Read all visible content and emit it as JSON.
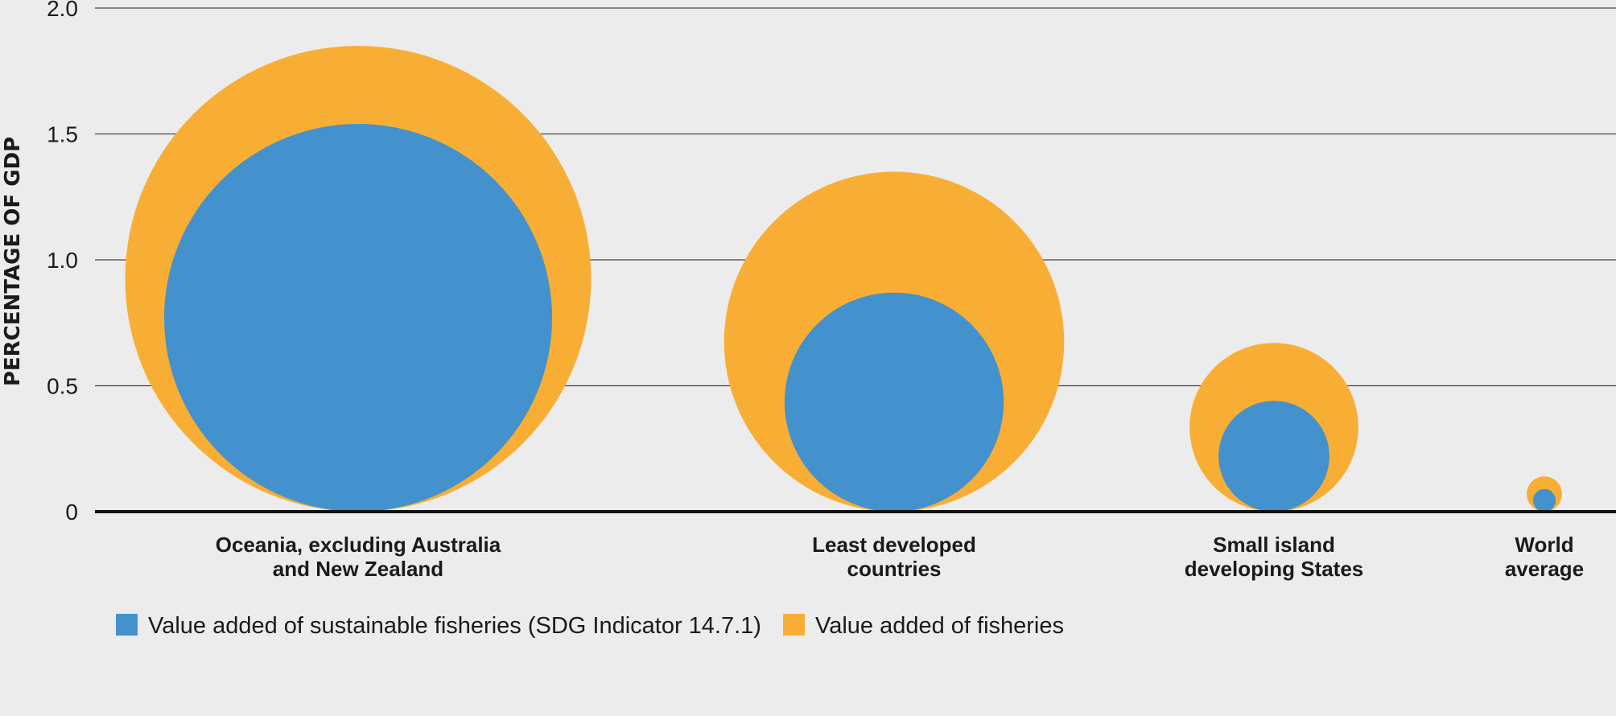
{
  "chart_data": {
    "type": "bubble",
    "title": "",
    "ylabel": "PERCENTAGE OF GDP",
    "ylim": [
      0,
      2.0
    ],
    "yticks": [
      "0",
      "0.5",
      "1.0",
      "1.5",
      "2.0"
    ],
    "yticks_values": [
      0,
      0.5,
      1.0,
      1.5,
      2.0
    ],
    "grid": true,
    "legend_position": "bottom-left",
    "categories": [
      [
        "Oceania, excluding Australia",
        "and New Zealand"
      ],
      [
        "Least developed",
        "countries"
      ],
      [
        "Small island",
        "developing States"
      ],
      [
        "World",
        "average"
      ]
    ],
    "series": [
      {
        "name": "Value added of fisheries",
        "color": "#f8ae34",
        "values": [
          1.85,
          1.35,
          0.67,
          0.14
        ]
      },
      {
        "name": "Value added of sustainable fisheries (SDG Indicator 14.7.1)",
        "color": "#4391cd",
        "values": [
          1.54,
          0.87,
          0.44,
          0.09
        ]
      }
    ],
    "legend": [
      {
        "label": "Value added of sustainable fisheries (SDG Indicator 14.7.1)",
        "color": "#4391cd"
      },
      {
        "label": "Value added of fisheries",
        "color": "#f8ae34"
      }
    ]
  }
}
